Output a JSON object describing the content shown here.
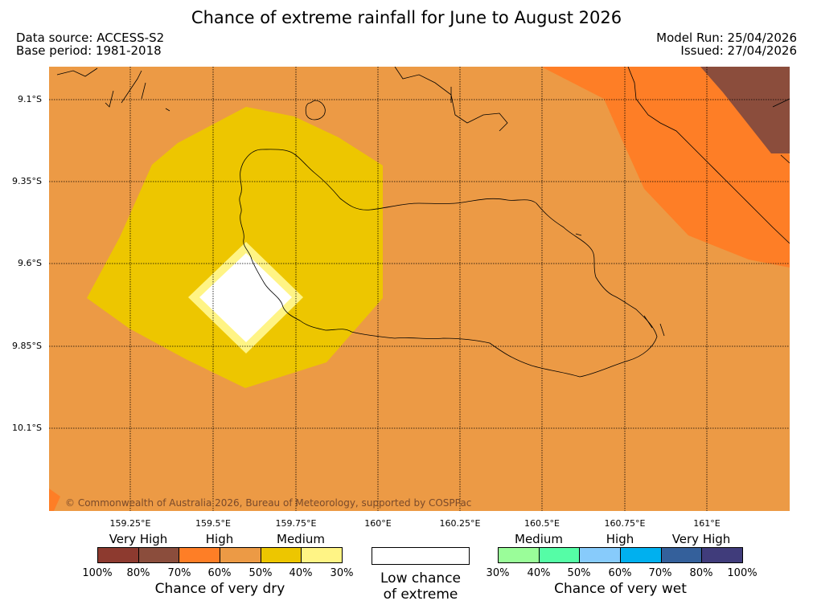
{
  "title": "Chance of extreme rainfall for June to August 2026",
  "data_source": "Data source: ACCESS-S2",
  "base_period": "Base period: 1981-2018",
  "model_run": "Model Run: 25/04/2026",
  "issued": "Issued: 27/04/2026",
  "copyright": "© Commonwealth of Australia 2026, Bureau of Meteorology, supported by COSPPac",
  "colors": {
    "background_moderate": "#ec9a45",
    "medium": "#edc600",
    "light": "#fff485",
    "low": "#ffffff",
    "high": "#fe7e26",
    "very_high": "#8b4d3c"
  },
  "lat_labels": [
    "9.1°S",
    "9.35°S",
    "9.6°S",
    "9.85°S",
    "10.1°S"
  ],
  "lon_labels": [
    "159.25°E",
    "159.5°E",
    "159.75°E",
    "160°E",
    "160.25°E",
    "160.5°E",
    "160.75°E",
    "161°E"
  ],
  "dry_legend": {
    "categories": [
      "Very High",
      "High",
      "Medium"
    ],
    "colors": [
      "#8d3a2f",
      "#8b4d3c",
      "#fe7e26",
      "#ec9a45",
      "#edc600",
      "#fff485"
    ],
    "ticks": [
      "100%",
      "80%",
      "70%",
      "60%",
      "50%",
      "40%",
      "30%"
    ],
    "title": "Chance of very dry"
  },
  "low_legend": {
    "line1": "Low chance",
    "line2": "of extreme"
  },
  "wet_legend": {
    "categories": [
      "Medium",
      "High",
      "Very High"
    ],
    "colors": [
      "#9afd99",
      "#55fda6",
      "#87cbfb",
      "#00b0ef",
      "#34609b",
      "#403c7b"
    ],
    "ticks": [
      "30%",
      "40%",
      "50%",
      "60%",
      "70%",
      "80%",
      "100%"
    ],
    "title": "Chance of very wet"
  }
}
